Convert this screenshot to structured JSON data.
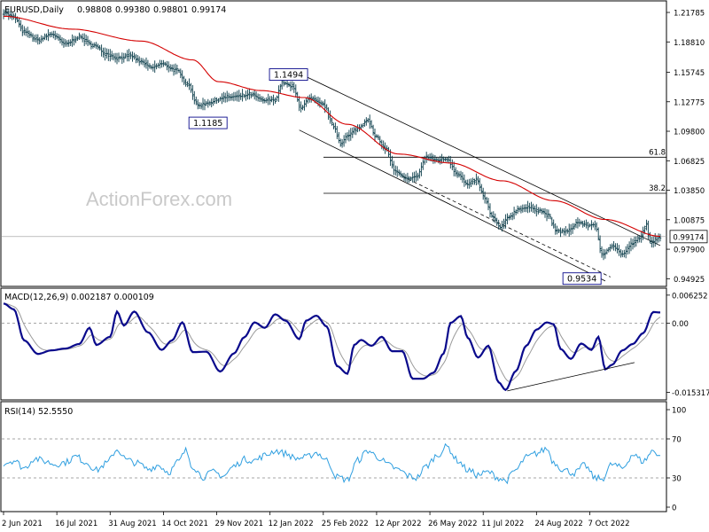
{
  "chart_data": {
    "type": "line",
    "symbol": "EURUSD,Daily",
    "ohlc": [
      "0.98808",
      "0.99380",
      "0.98801",
      "0.99174"
    ],
    "watermark": "ActionForex.com",
    "price": {
      "ylim": [
        0.9415,
        1.2295
      ],
      "yticks": [
        "1.21785",
        "1.18810",
        "1.15745",
        "1.12775",
        "1.09800",
        "1.06825",
        "1.03850",
        "1.00875",
        "0.97900",
        "0.94925"
      ],
      "last_price": "0.99174",
      "last_value": 0.99174,
      "anchors": [
        [
          0,
          1.218
        ],
        [
          6,
          1.213
        ],
        [
          12,
          1.198
        ],
        [
          20,
          1.19
        ],
        [
          28,
          1.196
        ],
        [
          36,
          1.186
        ],
        [
          44,
          1.193
        ],
        [
          52,
          1.185
        ],
        [
          60,
          1.176
        ],
        [
          66,
          1.172
        ],
        [
          74,
          1.174
        ],
        [
          80,
          1.168
        ],
        [
          86,
          1.162
        ],
        [
          92,
          1.166
        ],
        [
          100,
          1.16
        ],
        [
          107,
          1.146
        ],
        [
          113,
          1.124
        ],
        [
          120,
          1.127
        ],
        [
          128,
          1.132
        ],
        [
          136,
          1.133
        ],
        [
          144,
          1.135
        ],
        [
          151,
          1.129
        ],
        [
          158,
          1.13
        ],
        [
          162,
          1.147
        ],
        [
          168,
          1.143
        ],
        [
          173,
          1.122
        ],
        [
          178,
          1.131
        ],
        [
          186,
          1.125
        ],
        [
          192,
          1.103
        ],
        [
          196,
          1.086
        ],
        [
          200,
          1.093
        ],
        [
          206,
          1.101
        ],
        [
          212,
          1.11
        ],
        [
          216,
          1.093
        ],
        [
          222,
          1.081
        ],
        [
          228,
          1.057
        ],
        [
          234,
          1.05
        ],
        [
          240,
          1.052
        ],
        [
          246,
          1.072
        ],
        [
          252,
          1.069
        ],
        [
          258,
          1.07
        ],
        [
          264,
          1.055
        ],
        [
          270,
          1.044
        ],
        [
          275,
          1.049
        ],
        [
          280,
          1.03
        ],
        [
          284,
          1.012
        ],
        [
          289,
          1.001
        ],
        [
          294,
          1.012
        ],
        [
          300,
          1.02
        ],
        [
          306,
          1.021
        ],
        [
          312,
          1.018
        ],
        [
          316,
          1.014
        ],
        [
          322,
          0.997
        ],
        [
          328,
          0.997
        ],
        [
          334,
          1.006
        ],
        [
          340,
          1.003
        ],
        [
          344,
          1.004
        ],
        [
          348,
          0.973
        ],
        [
          354,
          0.983
        ],
        [
          360,
          0.974
        ],
        [
          366,
          0.985
        ],
        [
          370,
          0.99
        ],
        [
          374,
          1.004
        ],
        [
          376,
          0.985
        ],
        [
          382,
          0.99174
        ]
      ],
      "ma": [
        [
          0,
          1.214
        ],
        [
          40,
          1.201
        ],
        [
          80,
          1.189
        ],
        [
          110,
          1.17
        ],
        [
          125,
          1.148
        ],
        [
          150,
          1.139
        ],
        [
          175,
          1.132
        ],
        [
          200,
          1.105
        ],
        [
          230,
          1.075
        ],
        [
          260,
          1.066
        ],
        [
          290,
          1.048
        ],
        [
          320,
          1.028
        ],
        [
          350,
          1.009
        ],
        [
          382,
          0.992
        ]
      ],
      "annotations": [
        {
          "text": "1.1494",
          "x": 165,
          "value": 1.1494
        },
        {
          "text": "1.1185",
          "x": 113,
          "value": 1.1185
        },
        {
          "text": "0.9534",
          "x": 346,
          "value": 0.9534
        }
      ],
      "fib_levels": [
        {
          "label": "61.8",
          "value": 1.0718
        },
        {
          "label": "38.2",
          "value": 1.0354
        }
      ],
      "channel_upper": [
        [
          172,
          1.1564
        ],
        [
          382,
          0.9827
        ]
      ],
      "channel_lower": [
        [
          172,
          1.0992
        ],
        [
          350,
          0.947
        ]
      ],
      "dashed_trend": [
        [
          232,
          1.0525
        ],
        [
          353,
          0.951
        ]
      ],
      "grid": false
    },
    "macd": {
      "label": "MACD(12,26,9) 0.002187 0.000109",
      "ylim": [
        -0.017,
        0.0078
      ],
      "yticks": [
        "0.006252",
        "0.00",
        "-0.015317"
      ],
      "anchors": [
        [
          0,
          0.0044
        ],
        [
          6,
          0.0031
        ],
        [
          12,
          -0.0038
        ],
        [
          20,
          -0.0068
        ],
        [
          28,
          -0.006
        ],
        [
          36,
          -0.0056
        ],
        [
          44,
          -0.0046
        ],
        [
          50,
          -0.001
        ],
        [
          54,
          -0.0048
        ],
        [
          62,
          -0.003
        ],
        [
          66,
          0.0026
        ],
        [
          70,
          -0.0005
        ],
        [
          76,
          0.0026
        ],
        [
          84,
          -0.002
        ],
        [
          92,
          -0.0059
        ],
        [
          98,
          -0.0038
        ],
        [
          104,
          0.0002
        ],
        [
          110,
          -0.0064
        ],
        [
          118,
          -0.0063
        ],
        [
          126,
          -0.0107
        ],
        [
          134,
          -0.0067
        ],
        [
          140,
          -0.0031
        ],
        [
          146,
          0.0002
        ],
        [
          152,
          -0.001
        ],
        [
          158,
          0.002
        ],
        [
          164,
          0.0006
        ],
        [
          172,
          -0.0035
        ],
        [
          176,
          0.0006
        ],
        [
          182,
          0.0017
        ],
        [
          188,
          -0.0007
        ],
        [
          194,
          -0.0095
        ],
        [
          200,
          -0.0112
        ],
        [
          204,
          -0.0048
        ],
        [
          208,
          -0.0037
        ],
        [
          214,
          -0.005
        ],
        [
          220,
          -0.003
        ],
        [
          226,
          -0.0062
        ],
        [
          232,
          -0.0062
        ],
        [
          238,
          -0.0123
        ],
        [
          244,
          -0.0123
        ],
        [
          250,
          -0.011
        ],
        [
          256,
          -0.0067
        ],
        [
          260,
          0.0001
        ],
        [
          266,
          0.0016
        ],
        [
          270,
          -0.0032
        ],
        [
          276,
          -0.0076
        ],
        [
          282,
          -0.005
        ],
        [
          288,
          -0.0131
        ],
        [
          292,
          -0.0148
        ],
        [
          298,
          -0.0106
        ],
        [
          304,
          -0.005
        ],
        [
          310,
          -0.0014
        ],
        [
          316,
          0.0002
        ],
        [
          320,
          -0.0002
        ],
        [
          324,
          -0.0057
        ],
        [
          330,
          -0.0079
        ],
        [
          336,
          -0.0045
        ],
        [
          342,
          -0.0059
        ],
        [
          346,
          -0.003
        ],
        [
          350,
          -0.0102
        ],
        [
          354,
          -0.0092
        ],
        [
          360,
          -0.006
        ],
        [
          366,
          -0.0046
        ],
        [
          372,
          -0.0022
        ],
        [
          378,
          0.0025
        ],
        [
          382,
          0.0024
        ]
      ],
      "trendline": [
        [
          293,
          -0.015
        ],
        [
          367,
          -0.0087
        ]
      ]
    },
    "rsi": {
      "label": "RSI(14) 52.5550",
      "ylim": [
        0,
        100
      ],
      "yticks": [
        "100",
        "70",
        "30",
        "0"
      ],
      "levels": [
        70,
        30
      ],
      "anchors": [
        [
          0,
          45
        ],
        [
          6,
          48
        ],
        [
          12,
          40
        ],
        [
          18,
          50
        ],
        [
          24,
          47
        ],
        [
          30,
          44
        ],
        [
          36,
          46
        ],
        [
          42,
          52
        ],
        [
          48,
          46
        ],
        [
          54,
          38
        ],
        [
          60,
          45
        ],
        [
          66,
          59
        ],
        [
          72,
          48
        ],
        [
          78,
          45
        ],
        [
          84,
          39
        ],
        [
          90,
          43
        ],
        [
          96,
          36
        ],
        [
          102,
          47
        ],
        [
          106,
          58
        ],
        [
          110,
          42
        ],
        [
          116,
          31
        ],
        [
          122,
          36
        ],
        [
          128,
          32
        ],
        [
          134,
          42
        ],
        [
          140,
          49
        ],
        [
          146,
          48
        ],
        [
          152,
          53
        ],
        [
          158,
          58
        ],
        [
          164,
          55
        ],
        [
          170,
          50
        ],
        [
          176,
          51
        ],
        [
          182,
          56
        ],
        [
          188,
          48
        ],
        [
          194,
          31
        ],
        [
          200,
          28
        ],
        [
          206,
          48
        ],
        [
          212,
          58
        ],
        [
          218,
          51
        ],
        [
          224,
          43
        ],
        [
          230,
          38
        ],
        [
          236,
          32
        ],
        [
          240,
          30
        ],
        [
          246,
          42
        ],
        [
          252,
          53
        ],
        [
          258,
          62
        ],
        [
          264,
          48
        ],
        [
          270,
          38
        ],
        [
          276,
          33
        ],
        [
          282,
          36
        ],
        [
          288,
          30
        ],
        [
          292,
          27
        ],
        [
          298,
          38
        ],
        [
          304,
          51
        ],
        [
          310,
          55
        ],
        [
          316,
          60
        ],
        [
          320,
          46
        ],
        [
          326,
          38
        ],
        [
          332,
          35
        ],
        [
          338,
          43
        ],
        [
          344,
          30
        ],
        [
          348,
          29
        ],
        [
          354,
          44
        ],
        [
          360,
          40
        ],
        [
          366,
          54
        ],
        [
          372,
          47
        ],
        [
          378,
          58
        ],
        [
          382,
          53
        ]
      ]
    },
    "x": {
      "n_bars": 383,
      "ticks": [
        {
          "i": 0,
          "label": "2 Jun 2021"
        },
        {
          "i": 31,
          "label": "16 Jul 2021"
        },
        {
          "i": 62,
          "label": "31 Aug 2021"
        },
        {
          "i": 93,
          "label": "14 Oct 2021"
        },
        {
          "i": 124,
          "label": "29 Nov 2021"
        },
        {
          "i": 155,
          "label": "12 Jan 2022"
        },
        {
          "i": 186,
          "label": "25 Feb 2022"
        },
        {
          "i": 217,
          "label": "12 Apr 2022"
        },
        {
          "i": 248,
          "label": "26 May 2022"
        },
        {
          "i": 279,
          "label": "11 Jul 2022"
        },
        {
          "i": 310,
          "label": "24 Aug 2022"
        },
        {
          "i": 341,
          "label": "7 Oct 2022"
        }
      ]
    },
    "colors": {
      "bars": "#0b3d4a",
      "ma": "#d40000",
      "macd": "#0a0a8c",
      "signal": "#9a9a9a",
      "rsi": "#2f9fe0",
      "levels": "#888888",
      "frame": "#000000"
    }
  }
}
